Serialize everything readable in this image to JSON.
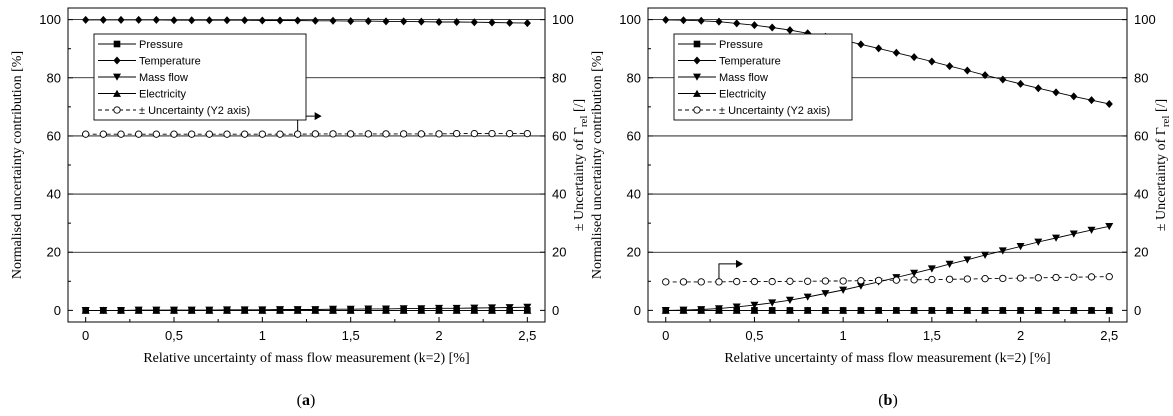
{
  "chart_data": [
    {
      "type": "line",
      "panel_label_open": "(",
      "panel_label_letter": "a",
      "panel_label_close": ")",
      "xlabel": "Relative uncertainty of mass flow measurement (k=2) [%]",
      "ylabel": "Normalised uncertainty contribution [%]",
      "y2label_prefix": "± Uncertainty of Γ",
      "y2label_sub": "rel",
      "y2label_suffix": " [/]",
      "xlim": [
        -0.1,
        2.6
      ],
      "ylim": [
        -4,
        104
      ],
      "x_ticks": [
        "0",
        "0,5",
        "1",
        "1,5",
        "2",
        "2,5"
      ],
      "x_tick_values": [
        0,
        0.5,
        1,
        1.5,
        2,
        2.5
      ],
      "y_ticks": [
        "0",
        "20",
        "40",
        "60",
        "80",
        "100"
      ],
      "y_tick_values": [
        0,
        20,
        40,
        60,
        80,
        100
      ],
      "y2_ticks": [
        "0",
        "20",
        "40",
        "60",
        "80",
        "100"
      ],
      "y2_tick_values": [
        0,
        20,
        40,
        60,
        80,
        100
      ],
      "grid": "horizontal",
      "legend_placement": "top-left",
      "x": [
        0,
        0.1,
        0.2,
        0.3,
        0.4,
        0.5,
        0.6,
        0.7,
        0.8,
        0.9,
        1.0,
        1.1,
        1.2,
        1.3,
        1.4,
        1.5,
        1.6,
        1.7,
        1.8,
        1.9,
        2.0,
        2.1,
        2.2,
        2.3,
        2.4,
        2.5
      ],
      "series": [
        {
          "name": "Pressure",
          "marker": "square",
          "dashed": false,
          "values": [
            0,
            0,
            0,
            0,
            0,
            0,
            0,
            0,
            0,
            0,
            0,
            0,
            0,
            0,
            0,
            0,
            0,
            0,
            0,
            0,
            0,
            0,
            0,
            0,
            0,
            0
          ]
        },
        {
          "name": "Temperature",
          "marker": "diamond",
          "dashed": false,
          "values": [
            99.9,
            99.9,
            99.9,
            99.9,
            99.9,
            99.8,
            99.8,
            99.8,
            99.8,
            99.8,
            99.7,
            99.7,
            99.7,
            99.6,
            99.6,
            99.5,
            99.5,
            99.4,
            99.4,
            99.3,
            99.2,
            99.2,
            99.1,
            99.0,
            98.9,
            98.8
          ]
        },
        {
          "name": "Mass flow",
          "marker": "triangle-down",
          "dashed": false,
          "values": [
            0,
            0,
            0,
            0.1,
            0.1,
            0.1,
            0.1,
            0.1,
            0.2,
            0.2,
            0.2,
            0.3,
            0.3,
            0.3,
            0.4,
            0.4,
            0.5,
            0.5,
            0.6,
            0.6,
            0.7,
            0.7,
            0.8,
            0.9,
            1.0,
            1.1
          ]
        },
        {
          "name": "Electricity",
          "marker": "triangle-up",
          "dashed": false,
          "values": [
            0,
            0,
            0,
            0,
            0,
            0,
            0,
            0,
            0,
            0,
            0,
            0,
            0,
            0,
            0,
            0,
            0,
            0,
            0,
            0,
            0,
            0,
            0,
            0,
            0,
            0
          ]
        },
        {
          "name": "± Uncertainty (Y2 axis)",
          "marker": "circle-open",
          "dashed": true,
          "axis": "y2",
          "values": [
            60.6,
            60.6,
            60.6,
            60.6,
            60.6,
            60.6,
            60.6,
            60.6,
            60.6,
            60.6,
            60.6,
            60.6,
            60.6,
            60.7,
            60.7,
            60.7,
            60.7,
            60.7,
            60.7,
            60.7,
            60.7,
            60.8,
            60.8,
            60.8,
            60.8,
            60.8
          ]
        }
      ],
      "arrow_at": {
        "x": 1.2,
        "y": 60.6
      }
    },
    {
      "type": "line",
      "panel_label_open": "(",
      "panel_label_letter": "b",
      "panel_label_close": ")",
      "xlabel": "Relative uncertainty of mass flow measurement (k=2) [%]",
      "ylabel": "Normalised uncertainty contribution [%]",
      "y2label_prefix": "± Uncertainty of Γ",
      "y2label_sub": "rel",
      "y2label_suffix": " [/]",
      "xlim": [
        -0.1,
        2.6
      ],
      "ylim": [
        -4,
        104
      ],
      "x_ticks": [
        "0",
        "0,5",
        "1",
        "1,5",
        "2",
        "2,5"
      ],
      "x_tick_values": [
        0,
        0.5,
        1,
        1.5,
        2,
        2.5
      ],
      "y_ticks": [
        "0",
        "20",
        "40",
        "60",
        "80",
        "100"
      ],
      "y_tick_values": [
        0,
        20,
        40,
        60,
        80,
        100
      ],
      "y2_ticks": [
        "0",
        "20",
        "40",
        "60",
        "80",
        "100"
      ],
      "y2_tick_values": [
        0,
        20,
        40,
        60,
        80,
        100
      ],
      "grid": "horizontal",
      "legend_placement": "top-left",
      "x": [
        0,
        0.1,
        0.2,
        0.3,
        0.4,
        0.5,
        0.6,
        0.7,
        0.8,
        0.9,
        1.0,
        1.1,
        1.2,
        1.3,
        1.4,
        1.5,
        1.6,
        1.7,
        1.8,
        1.9,
        2.0,
        2.1,
        2.2,
        2.3,
        2.4,
        2.5
      ],
      "series": [
        {
          "name": "Pressure",
          "marker": "square",
          "dashed": false,
          "values": [
            0,
            0,
            0,
            0,
            0,
            0,
            0,
            0,
            0,
            0,
            0,
            0,
            0,
            0,
            0,
            0,
            0,
            0,
            0,
            0,
            0,
            0,
            0,
            0,
            0,
            0
          ]
        },
        {
          "name": "Temperature",
          "marker": "diamond",
          "dashed": false,
          "values": [
            99.9,
            99.8,
            99.6,
            99.3,
            98.7,
            98.1,
            97.3,
            96.4,
            95.3,
            94.1,
            92.9,
            91.5,
            90.1,
            88.6,
            87.1,
            85.6,
            84.0,
            82.5,
            80.9,
            79.4,
            77.9,
            76.4,
            75.0,
            73.6,
            72.3,
            71.0
          ]
        },
        {
          "name": "Mass flow",
          "marker": "triangle-down",
          "dashed": false,
          "values": [
            0,
            0.1,
            0.3,
            0.6,
            1.2,
            1.8,
            2.6,
            3.5,
            4.6,
            5.8,
            7.0,
            8.4,
            9.8,
            11.3,
            12.8,
            14.3,
            15.9,
            17.4,
            19.0,
            20.5,
            22.0,
            23.5,
            24.9,
            26.3,
            27.6,
            28.9
          ]
        },
        {
          "name": "Electricity",
          "marker": "triangle-up",
          "dashed": false,
          "values": [
            0,
            0,
            0,
            0,
            0,
            0,
            0,
            0,
            0,
            0,
            0,
            0,
            0,
            0,
            0,
            0,
            0,
            0,
            0,
            0,
            0,
            0,
            0,
            0,
            0,
            0
          ]
        },
        {
          "name": "± Uncertainty (Y2 axis)",
          "marker": "circle-open",
          "dashed": true,
          "axis": "y2",
          "values": [
            9.8,
            9.8,
            9.8,
            9.8,
            9.9,
            9.9,
            9.9,
            10.0,
            10.0,
            10.1,
            10.1,
            10.2,
            10.3,
            10.4,
            10.5,
            10.6,
            10.7,
            10.8,
            10.9,
            11.0,
            11.1,
            11.2,
            11.3,
            11.4,
            11.5,
            11.6
          ]
        }
      ],
      "arrow_at": {
        "x": 0.3,
        "y": 9.8
      }
    }
  ]
}
